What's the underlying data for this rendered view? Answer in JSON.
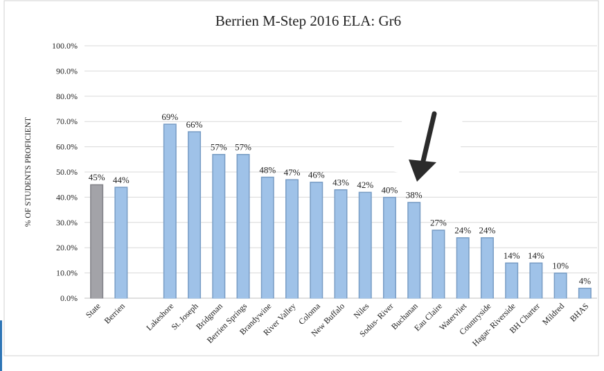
{
  "chart_data": {
    "type": "bar",
    "title": "Berrien M-Step 2016 ELA: Gr6",
    "y_label": "% OF STUDENTS PROFICIENT",
    "categories": [
      "State",
      "Berrien",
      null,
      "Lakeshore",
      "St. Joseph",
      "Bridgman",
      "Berrien Springs",
      "Brandywine",
      "River Valley",
      "Coloma",
      "New Buffalo",
      "Niles",
      "Sodus- River",
      "Buchanan",
      "Eau Claire",
      "Watervliet",
      "Countryside",
      "Hagar- Riverside",
      "BH Charter",
      "Mildred",
      "BHAS"
    ],
    "values": [
      45,
      44,
      null,
      69,
      66,
      57,
      57,
      48,
      47,
      46,
      43,
      42,
      40,
      38,
      27,
      24,
      24,
      14,
      14,
      10,
      4
    ],
    "value_labels": [
      "45%",
      "44%",
      null,
      "69%",
      "66%",
      "57%",
      "57%",
      "48%",
      "47%",
      "46%",
      "43%",
      "42%",
      "40%",
      "38%",
      "27%",
      "24%",
      "24%",
      "14%",
      "14%",
      "10%",
      "4%"
    ],
    "colors": [
      "#a3a3a8",
      "#9fc2e8",
      null,
      "#9fc2e8",
      "#9fc2e8",
      "#9fc2e8",
      "#9fc2e8",
      "#9fc2e8",
      "#9fc2e8",
      "#9fc2e8",
      "#9fc2e8",
      "#9fc2e8",
      "#9fc2e8",
      "#9fc2e8",
      "#9fc2e8",
      "#9fc2e8",
      "#9fc2e8",
      "#9fc2e8",
      "#9fc2e8",
      "#9fc2e8",
      "#9fc2e8"
    ],
    "ylim": [
      0,
      100
    ],
    "yticks": [
      {
        "value": 0,
        "label": "0.0%"
      },
      {
        "value": 10,
        "label": "10.0%"
      },
      {
        "value": 20,
        "label": "20.0%"
      },
      {
        "value": 30,
        "label": "30.0%"
      },
      {
        "value": 40,
        "label": "40.0%"
      },
      {
        "value": 50,
        "label": "50.0%"
      },
      {
        "value": 60,
        "label": "60.0%"
      },
      {
        "value": 70,
        "label": "70.0%"
      },
      {
        "value": 80,
        "label": "80.0%"
      },
      {
        "value": 90,
        "label": "90.0%"
      },
      {
        "value": 100,
        "label": "100.0%"
      }
    ],
    "grid": true
  }
}
